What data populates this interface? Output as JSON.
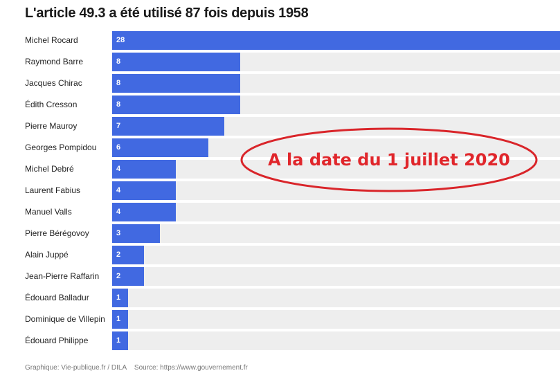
{
  "chart_data": {
    "type": "bar",
    "orientation": "horizontal",
    "title": "L'article 49.3 a été utilisé 87 fois depuis 1958",
    "categories": [
      "Michel Rocard",
      "Raymond Barre",
      "Jacques Chirac",
      "Édith Cresson",
      "Pierre Mauroy",
      "Georges Pompidou",
      "Michel Debré",
      "Laurent Fabius",
      "Manuel Valls",
      "Pierre Bérégovoy",
      "Alain Juppé",
      "Jean-Pierre Raffarin",
      "Édouard Balladur",
      "Dominique de Villepin",
      "Édouard Philippe"
    ],
    "values": [
      28,
      8,
      8,
      8,
      7,
      6,
      4,
      4,
      4,
      3,
      2,
      2,
      1,
      1,
      1
    ],
    "xlim": [
      0,
      28
    ],
    "grid": false,
    "bar_color": "#4169e1",
    "track_color": "#eeeeee"
  },
  "annotation": {
    "text": "A la date du 1 juillet 2020",
    "color": "#e0262b"
  },
  "footer": {
    "credit": "Graphique: Vie-publique.fr / DILA",
    "source": "Source: https://www.gouvernement.fr"
  }
}
